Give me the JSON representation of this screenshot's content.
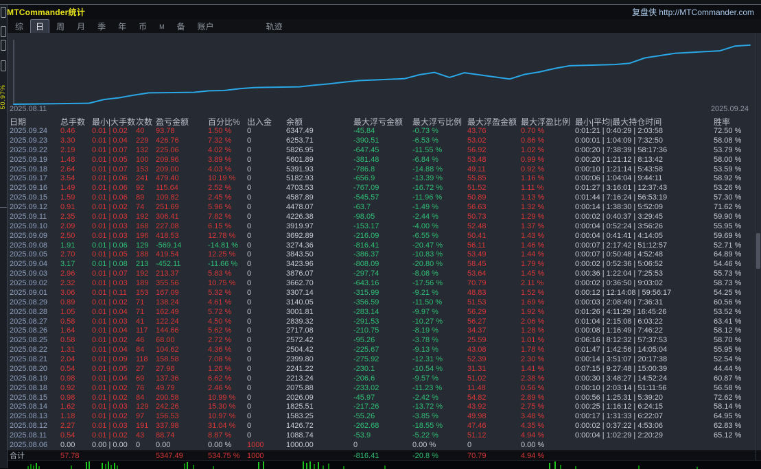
{
  "titlebar": {
    "title": "MTCommander统计",
    "brand": "复盘侠 http://MTCommander.com"
  },
  "menubar": {
    "items": [
      "综",
      "日",
      "周",
      "月",
      "季",
      "年",
      "币",
      "M",
      "备",
      "账户",
      "轨迹"
    ],
    "selected": "日"
  },
  "left_strip": {
    "rotated_label": "50.97%"
  },
  "chart_data": {
    "type": "line",
    "title": "",
    "xlabel": "",
    "ylabel": "余额",
    "x_start_label": "2025.08.11",
    "x_end_label": "2025.09.24",
    "line_color": "#29a7e6",
    "ylim": [
      1000,
      6700
    ],
    "grid": false,
    "legend": "none",
    "x": [
      "2025.08.06",
      "2025.08.11",
      "2025.08.12",
      "2025.08.13",
      "2025.08.14",
      "2025.08.15",
      "2025.08.18",
      "2025.08.19",
      "2025.08.20",
      "2025.08.21",
      "2025.08.22",
      "2025.08.25",
      "2025.08.26",
      "2025.08.27",
      "2025.08.28",
      "2025.08.29",
      "2025.09.01",
      "2025.09.02",
      "2025.09.03",
      "2025.09.04",
      "2025.09.05",
      "2025.09.08",
      "2025.09.09",
      "2025.09.10",
      "2025.09.11",
      "2025.09.12",
      "2025.09.15",
      "2025.09.16",
      "2025.09.17",
      "2025.09.18",
      "2025.09.19",
      "2025.09.22",
      "2025.09.23",
      "2025.09.24"
    ],
    "series": [
      {
        "name": "余额",
        "values": [
          1000.0,
          1088.74,
          1426.72,
          1583.25,
          1825.51,
          2026.09,
          2075.88,
          2213.24,
          2241.22,
          2399.8,
          2504.42,
          2572.42,
          2717.08,
          2839.32,
          3001.81,
          3140.05,
          3307.14,
          3662.7,
          3876.07,
          3423.96,
          3843.5,
          3274.36,
          3692.89,
          3919.97,
          4226.38,
          4478.07,
          4587.89,
          4703.53,
          5182.93,
          5391.93,
          5601.89,
          5826.95,
          6253.71,
          6347.49
        ]
      }
    ]
  },
  "table": {
    "headers": [
      "日期",
      "总手数",
      "最小|大手数",
      "次数",
      "盈亏金额",
      "百分比%",
      "出入金",
      "余额",
      "最大浮亏金额",
      "最大浮亏比例",
      "最大浮盈金额",
      "最大浮盈比例",
      "最小|平均|最大持仓时间",
      "胜率"
    ],
    "rows": [
      {
        "type": "profit",
        "cells": [
          "2025.09.24",
          "0.46",
          "0.01 | 0.02",
          "40",
          "93.78",
          "1.50 %",
          "0",
          "6347.49",
          "-45.84",
          "-0.73 %",
          "43.76",
          "0.70 %",
          "0:01:21 | 0:40:29 | 2:03:58",
          "72.50 %"
        ]
      },
      {
        "type": "profit",
        "cells": [
          "2025.09.23",
          "3.30",
          "0.01 | 0.04",
          "229",
          "426.76",
          "7.32 %",
          "0",
          "6253.71",
          "-390.51",
          "-6.53 %",
          "53.02",
          "0.86 %",
          "0:00:01 | 1:04:09 | 7:32:50",
          "58.08 %"
        ]
      },
      {
        "type": "profit",
        "cells": [
          "2025.09.22",
          "2.19",
          "0.01 | 0.07",
          "132",
          "225.06",
          "4.02 %",
          "0",
          "5826.95",
          "-647.45",
          "-11.55 %",
          "56.92",
          "1.02 %",
          "0:00:20 | 7:38:39 | 58:17:36",
          "53.79 %"
        ]
      },
      {
        "type": "profit",
        "cells": [
          "2025.09.19",
          "1.48",
          "0.01 | 0.05",
          "100",
          "209.96",
          "3.89 %",
          "0",
          "5601.89",
          "-381.48",
          "-6.84 %",
          "53.48",
          "0.99 %",
          "0:00:20 | 1:21:12 | 8:13:42",
          "58.00 %"
        ]
      },
      {
        "type": "profit",
        "cells": [
          "2025.09.18",
          "2.64",
          "0.01 | 0.07",
          "153",
          "209.00",
          "4.03 %",
          "0",
          "5391.93",
          "-786.8",
          "-14.88 %",
          "49.11",
          "0.92 %",
          "0:00:10 | 1:21:14 | 5:43:58",
          "53.59 %"
        ]
      },
      {
        "type": "profit",
        "cells": [
          "2025.09.17",
          "3.54",
          "0.01 | 0.06",
          "241",
          "479.40",
          "10.19 %",
          "0",
          "5182.93",
          "-656.9",
          "-13.39 %",
          "55.85",
          "1.16 %",
          "0:00:06 | 1:04:04 | 9:44:11",
          "58.92 %"
        ]
      },
      {
        "type": "profit",
        "cells": [
          "2025.09.16",
          "1.49",
          "0.01 | 0.06",
          "92",
          "115.64",
          "2.52 %",
          "0",
          "4703.53",
          "-767.09",
          "-16.72 %",
          "51.52",
          "1.11 %",
          "0:01:27 | 3:16:01 | 12:37:43",
          "53.26 %"
        ]
      },
      {
        "type": "profit",
        "cells": [
          "2025.09.15",
          "1.59",
          "0.01 | 0.06",
          "89",
          "109.82",
          "2.45 %",
          "0",
          "4587.89",
          "-545.57",
          "-11.96 %",
          "50.89",
          "1.13 %",
          "0:01:44 | 7:16:24 | 56:53:19",
          "57.30 %"
        ]
      },
      {
        "type": "profit",
        "cells": [
          "2025.09.12",
          "0.91",
          "0.01 | 0.02",
          "74",
          "251.69",
          "5.96 %",
          "0",
          "4478.07",
          "-63.7",
          "-1.49 %",
          "56.63",
          "1.32 %",
          "0:00:14 | 1:38:30 | 5:52:09",
          "71.62 %"
        ]
      },
      {
        "type": "profit",
        "cells": [
          "2025.09.11",
          "2.35",
          "0.01 | 0.03",
          "192",
          "306.41",
          "7.82 %",
          "0",
          "4226.38",
          "-98.05",
          "-2.44 %",
          "50.73",
          "1.29 %",
          "0:00:02 | 0:40:37 | 3:29:45",
          "59.90 %"
        ]
      },
      {
        "type": "profit",
        "cells": [
          "2025.09.10",
          "2.09",
          "0.01 | 0.03",
          "168",
          "227.08",
          "6.15 %",
          "0",
          "3919.97",
          "-153.17",
          "-4.00 %",
          "52.48",
          "1.37 %",
          "0:00:04 | 0:52:24 | 3:56:26",
          "55.95 %"
        ]
      },
      {
        "type": "profit",
        "cells": [
          "2025.09.09",
          "2.50",
          "0.01 | 0.03",
          "196",
          "418.53",
          "12.78 %",
          "0",
          "3692.89",
          "-216.09",
          "-6.55 %",
          "50.41",
          "1.43 %",
          "0:00:04 | 0:41:41 | 4:14:05",
          "59.69 %"
        ]
      },
      {
        "type": "loss",
        "cells": [
          "2025.09.08",
          "1.91",
          "0.01 | 0.06",
          "129",
          "-569.14",
          "-14.81 %",
          "0",
          "3274.36",
          "-816.41",
          "-20.47 %",
          "56.11",
          "1.46 %",
          "0:00:07 | 2:17:42 | 51:12:57",
          "52.71 %"
        ]
      },
      {
        "type": "profit",
        "cells": [
          "2025.09.05",
          "2.70",
          "0.01 | 0.05",
          "188",
          "419.54",
          "12.25 %",
          "0",
          "3843.50",
          "-386.37",
          "-10.83 %",
          "53.49",
          "1.44 %",
          "0:00:07 | 0:50:48 | 4:52:48",
          "64.89 %"
        ]
      },
      {
        "type": "loss",
        "cells": [
          "2025.09.04",
          "3.17",
          "0.01 | 0.08",
          "213",
          "-452.11",
          "-11.66 %",
          "0",
          "3423.96",
          "-808.09",
          "-20.80 %",
          "58.45",
          "1.79 %",
          "0:00:02 | 0:52:36 | 5:06:52",
          "54.46 %"
        ]
      },
      {
        "type": "profit",
        "cells": [
          "2025.09.03",
          "2.96",
          "0.01 | 0.07",
          "192",
          "213.37",
          "5.83 %",
          "0",
          "3876.07",
          "-297.74",
          "-8.08 %",
          "53.64",
          "1.45 %",
          "0:00:36 | 1:22:04 | 7:25:53",
          "55.73 %"
        ]
      },
      {
        "type": "profit",
        "cells": [
          "2025.09.02",
          "2.32",
          "0.01 | 0.03",
          "189",
          "355.56",
          "10.75 %",
          "0",
          "3662.70",
          "-643.16",
          "-17.56 %",
          "70.79",
          "2.11 %",
          "0:00:02 | 0:36:50 | 9:03:02",
          "58.73 %"
        ]
      },
      {
        "type": "profit",
        "cells": [
          "2025.09.01",
          "3.06",
          "0.01 | 0.11",
          "153",
          "167.09",
          "5.32 %",
          "0",
          "3307.14",
          "-315.99",
          "-9.21 %",
          "48.83",
          "1.52 %",
          "0:00:12 | 12:14:08 | 59:56:17",
          "54.25 %"
        ]
      },
      {
        "type": "profit",
        "cells": [
          "2025.08.29",
          "0.89",
          "0.01 | 0.02",
          "71",
          "138.24",
          "4.61 %",
          "0",
          "3140.05",
          "-356.59",
          "-11.50 %",
          "51.53",
          "1.69 %",
          "0:00:03 | 2:08:49 | 7:36:31",
          "60.56 %"
        ]
      },
      {
        "type": "profit",
        "cells": [
          "2025.08.28",
          "1.05",
          "0.01 | 0.04",
          "71",
          "162.49",
          "5.72 %",
          "0",
          "3001.81",
          "-283.14",
          "-9.97 %",
          "56.29",
          "1.92 %",
          "0:01:26 | 4:11:29 | 16:45:26",
          "53.52 %"
        ]
      },
      {
        "type": "profit",
        "cells": [
          "2025.08.27",
          "0.58",
          "0.01 | 0.03",
          "41",
          "122.24",
          "4.50 %",
          "0",
          "2839.32",
          "-291.53",
          "-10.27 %",
          "56.27",
          "2.06 %",
          "0:01:04 | 2:15:08 | 6:03:22",
          "63.41 %"
        ]
      },
      {
        "type": "profit",
        "cells": [
          "2025.08.26",
          "1.64",
          "0.01 | 0.04",
          "117",
          "144.66",
          "5.62 %",
          "0",
          "2717.08",
          "-210.75",
          "-8.19 %",
          "34.37",
          "1.28 %",
          "0:00:08 | 1:16:49 | 7:46:22",
          "58.12 %"
        ]
      },
      {
        "type": "profit",
        "cells": [
          "2025.08.25",
          "0.58",
          "0.01 | 0.02",
          "46",
          "68.00",
          "2.72 %",
          "0",
          "2572.42",
          "-95.26",
          "-3.78 %",
          "25.59",
          "1.01 %",
          "0:06:16 | 8:12:32 | 57:37:53",
          "58.70 %"
        ]
      },
      {
        "type": "profit",
        "cells": [
          "2025.08.22",
          "1.31",
          "0.01 | 0.04",
          "84",
          "104.62",
          "4.36 %",
          "0",
          "2504.42",
          "-225.67",
          "-9.13 %",
          "43.08",
          "1.78 %",
          "0:01:47 | 1:42:56 | 14:05:04",
          "55.95 %"
        ]
      },
      {
        "type": "profit",
        "cells": [
          "2025.08.21",
          "2.04",
          "0.01 | 0.09",
          "118",
          "158.58",
          "7.08 %",
          "0",
          "2399.80",
          "-275.92",
          "-12.31 %",
          "52.39",
          "2.30 %",
          "0:00:14 | 3:51:07 | 20:17:38",
          "52.54 %"
        ]
      },
      {
        "type": "profit",
        "cells": [
          "2025.08.20",
          "0.54",
          "0.01 | 0.05",
          "27",
          "27.98",
          "1.26 %",
          "0",
          "2241.22",
          "-230.1",
          "-10.54 %",
          "31.31",
          "1.41 %",
          "0:07:15 | 9:27:48 | 15:00:39",
          "44.44 %"
        ]
      },
      {
        "type": "profit",
        "cells": [
          "2025.08.19",
          "0.98",
          "0.01 | 0.04",
          "69",
          "137.36",
          "6.62 %",
          "0",
          "2213.24",
          "-206.6",
          "-9.57 %",
          "51.02",
          "2.38 %",
          "0:00:30 | 3:48:27 | 14:52:24",
          "60.87 %"
        ]
      },
      {
        "type": "profit",
        "cells": [
          "2025.08.18",
          "0.92",
          "0.01 | 0.02",
          "76",
          "49.79",
          "2.46 %",
          "0",
          "2075.88",
          "-233.02",
          "-11.23 %",
          "11.48",
          "0.56 %",
          "0:00:10 | 2:03:14 | 51:11:56",
          "56.58 %"
        ]
      },
      {
        "type": "profit",
        "cells": [
          "2025.08.15",
          "0.98",
          "0.01 | 0.02",
          "84",
          "200.58",
          "10.99 %",
          "0",
          "2026.09",
          "-45.97",
          "-2.42 %",
          "54.82",
          "2.89 %",
          "0:00:56 | 1:25:31 | 5:39:20",
          "72.62 %"
        ]
      },
      {
        "type": "profit",
        "cells": [
          "2025.08.14",
          "1.62",
          "0.01 | 0.03",
          "129",
          "242.26",
          "15.30 %",
          "0",
          "1825.51",
          "-217.26",
          "-13.72 %",
          "43.92",
          "2.75 %",
          "0:00:25 | 1:16:12 | 6:24:15",
          "58.14 %"
        ]
      },
      {
        "type": "profit",
        "cells": [
          "2025.08.13",
          "1.18",
          "0.01 | 0.02",
          "97",
          "156.53",
          "10.97 %",
          "0",
          "1583.25",
          "-55.26",
          "-3.85 %",
          "49.98",
          "3.48 %",
          "0:00:17 | 1:31:33 | 6:22:07",
          "64.95 %"
        ]
      },
      {
        "type": "profit",
        "cells": [
          "2025.08.12",
          "2.27",
          "0.01 | 0.03",
          "191",
          "337.98",
          "31.04 %",
          "0",
          "1426.72",
          "-262.68",
          "-18.55 %",
          "47.46",
          "4.35 %",
          "0:00:02 | 0:37:22 | 4:53:06",
          "62.83 %"
        ]
      },
      {
        "type": "profit",
        "cells": [
          "2025.08.11",
          "0.54",
          "0.01 | 0.02",
          "43",
          "88.74",
          "8.87 %",
          "0",
          "1088.74",
          "-53.9",
          "-5.22 %",
          "51.12",
          "4.94 %",
          "0:00:04 | 1:02:29 | 2:20:29",
          "65.12 %"
        ]
      },
      {
        "type": "zero",
        "cells": [
          "2025.08.06",
          "0.00",
          "0.00 | 0.00",
          "0",
          "0.00",
          "0.00 %",
          "1000",
          "1000.00",
          "0",
          "0.00 %",
          "0",
          "0.00 %",
          "",
          ""
        ]
      }
    ],
    "total": {
      "label": "合计",
      "cells": [
        "57.78",
        "",
        "",
        "5347.49",
        "534.75 %",
        "1000",
        "",
        "-816.41",
        "-20.8 %",
        "70.79",
        "4.94 %",
        "",
        ""
      ]
    }
  },
  "bottom_bars": [
    [
      40,
      4
    ],
    [
      44,
      7
    ],
    [
      48,
      5
    ],
    [
      52,
      9
    ],
    [
      56,
      4
    ],
    [
      103,
      5
    ],
    [
      125,
      10
    ],
    [
      129,
      11
    ],
    [
      148,
      9
    ],
    [
      153,
      7
    ],
    [
      157,
      11
    ],
    [
      161,
      6
    ],
    [
      166,
      9
    ],
    [
      170,
      5
    ],
    [
      268,
      8
    ],
    [
      272,
      10
    ],
    [
      281,
      6
    ],
    [
      310,
      4
    ],
    [
      376,
      10
    ],
    [
      383,
      11
    ],
    [
      441,
      11
    ],
    [
      446,
      9
    ],
    [
      451,
      11
    ],
    [
      457,
      7
    ],
    [
      463,
      10
    ],
    [
      470,
      5
    ],
    [
      478,
      8
    ],
    [
      500,
      4
    ],
    [
      560,
      5
    ],
    [
      800,
      9
    ],
    [
      808,
      11
    ],
    [
      816,
      6
    ],
    [
      838,
      4
    ],
    [
      930,
      5
    ],
    [
      1015,
      3
    ]
  ],
  "colors": {
    "profit_red": "#d93636",
    "loss_green": "#2fbf74",
    "neutral": "#c4cad3",
    "date_blue": "#8fa0bf",
    "title_yellow": "#e8e41c",
    "brand_blue": "#a9c7e8",
    "chart_line": "#29a7e6",
    "activity_green": "#1ec41e"
  }
}
